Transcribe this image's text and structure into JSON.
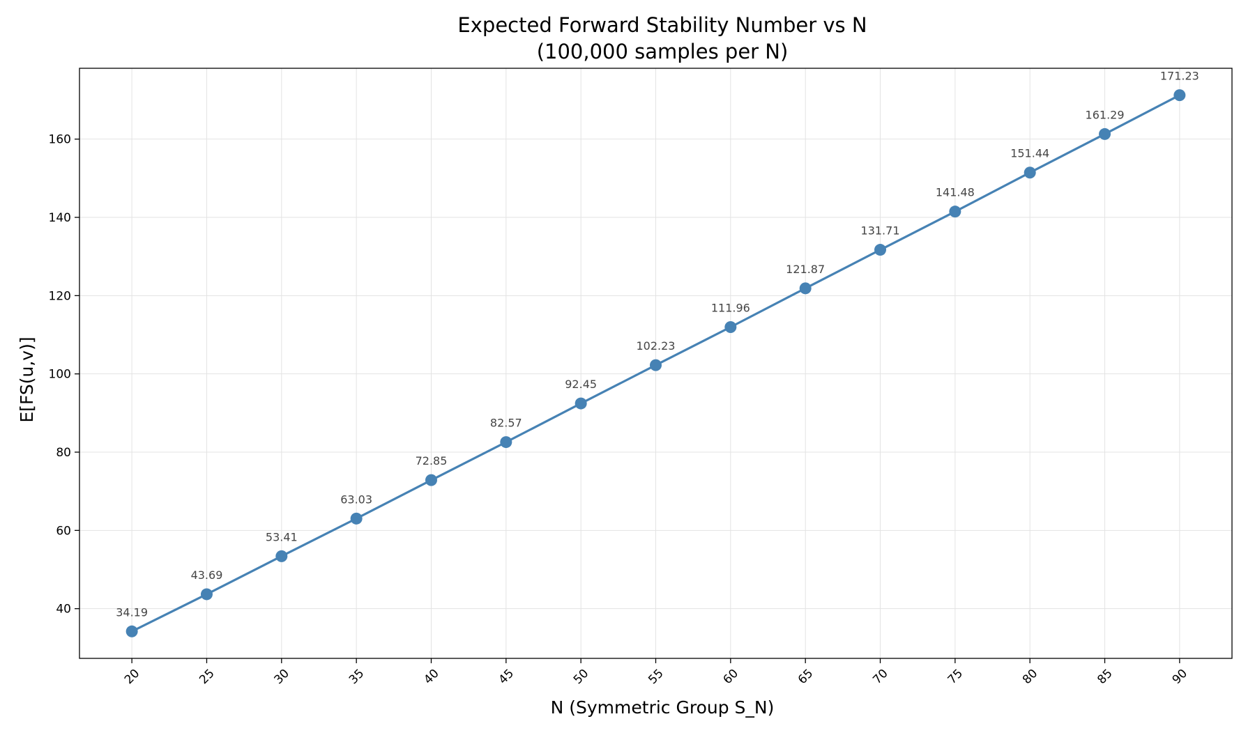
{
  "chart_data": {
    "type": "line",
    "title_line1": "Expected Forward Stability Number vs N",
    "title_line2": "(100,000 samples per N)",
    "xlabel": "N (Symmetric Group S_N)",
    "ylabel": "E[FS(u,v)]",
    "x": [
      20,
      25,
      30,
      35,
      40,
      45,
      50,
      55,
      60,
      65,
      70,
      75,
      80,
      85,
      90
    ],
    "y": [
      34.19,
      43.69,
      53.41,
      63.03,
      72.85,
      82.57,
      92.45,
      102.23,
      111.96,
      121.87,
      131.71,
      141.48,
      151.44,
      161.29,
      171.23
    ],
    "data_labels": [
      "34.19",
      "43.69",
      "53.41",
      "63.03",
      "72.85",
      "82.57",
      "92.45",
      "102.23",
      "111.96",
      "121.87",
      "131.71",
      "141.48",
      "151.44",
      "161.29",
      "171.23"
    ],
    "x_ticks": [
      "20",
      "25",
      "30",
      "35",
      "40",
      "45",
      "50",
      "55",
      "60",
      "65",
      "70",
      "75",
      "80",
      "85",
      "90"
    ],
    "y_ticks": [
      "40",
      "60",
      "80",
      "100",
      "120",
      "140",
      "160"
    ],
    "y_tick_values": [
      40,
      60,
      80,
      100,
      120,
      140,
      160
    ],
    "xlim": [
      16.5,
      93.5
    ],
    "ylim": [
      27.3,
      178.1
    ],
    "grid": true,
    "line_color": "#4682b4"
  }
}
